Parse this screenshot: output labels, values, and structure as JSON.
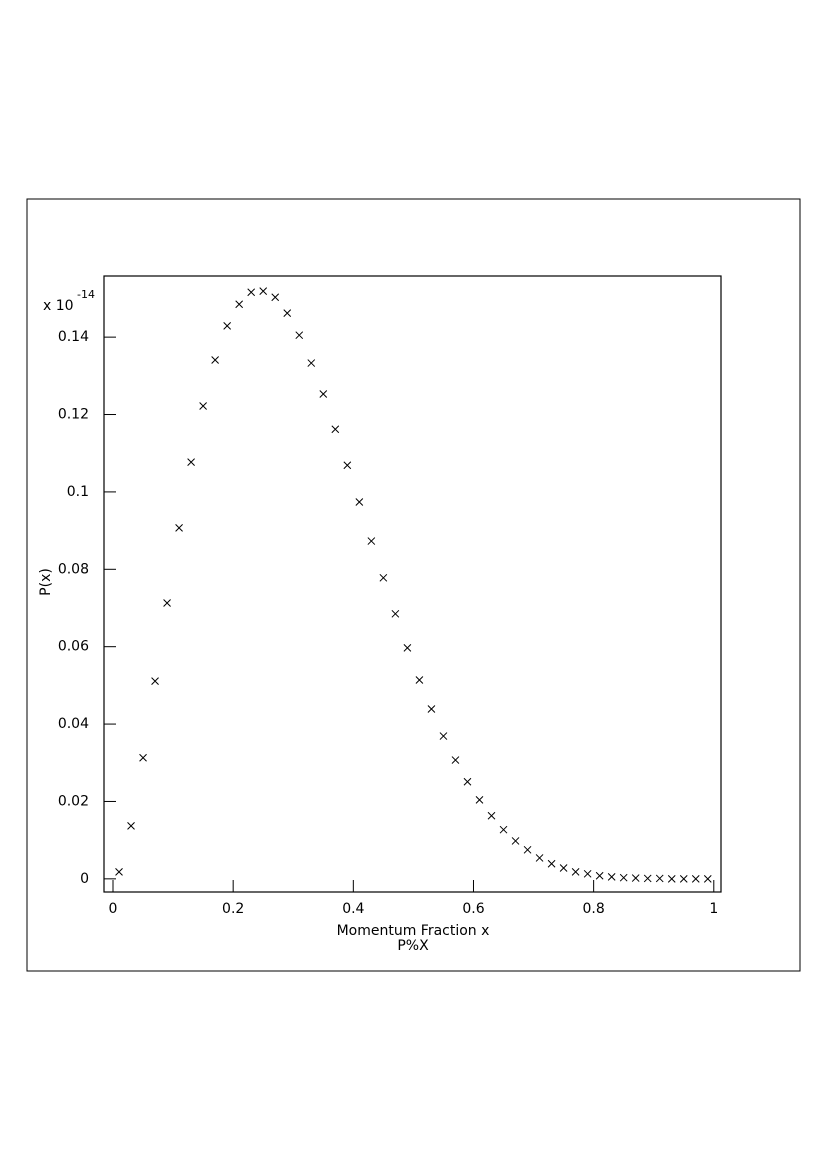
{
  "chart_data": {
    "type": "scatter",
    "x_label": "Momentum Fraction x",
    "subtitle": "P%X",
    "y_label": "P(x)",
    "y_multiplier": "x 10",
    "y_exponent": "-14",
    "x": [
      0.01,
      0.03,
      0.05,
      0.07,
      0.09,
      0.11,
      0.13,
      0.15,
      0.17,
      0.19,
      0.21,
      0.23,
      0.25,
      0.27,
      0.29,
      0.31,
      0.33,
      0.35,
      0.37,
      0.39,
      0.41,
      0.43,
      0.45,
      0.47,
      0.49,
      0.51,
      0.53,
      0.55,
      0.57,
      0.59,
      0.61,
      0.63,
      0.65,
      0.67,
      0.69,
      0.71,
      0.73,
      0.75,
      0.77,
      0.79,
      0.81,
      0.83,
      0.85,
      0.87,
      0.89,
      0.91,
      0.93,
      0.95,
      0.97,
      0.99
    ],
    "values": [
      0.0018,
      0.0137,
      0.0313,
      0.0511,
      0.0713,
      0.0907,
      0.1077,
      0.1222,
      0.1341,
      0.1429,
      0.1485,
      0.1516,
      0.1519,
      0.1503,
      0.1462,
      0.1405,
      0.1333,
      0.1253,
      0.1162,
      0.1069,
      0.0974,
      0.0873,
      0.0778,
      0.0685,
      0.0597,
      0.0514,
      0.0439,
      0.0369,
      0.0307,
      0.0251,
      0.0204,
      0.0163,
      0.0127,
      0.0098,
      0.0075,
      0.0054,
      0.0039,
      0.0028,
      0.0018,
      0.0013,
      0.0008,
      0.0005,
      0.0003,
      0.0002,
      0.0001,
      0.0001,
      0,
      0,
      0,
      0
    ],
    "color": "#000000",
    "xlim": [
      -0.015,
      1.012
    ],
    "ylim": [
      -0.0034,
      0.1558
    ],
    "xticks": [
      0,
      0.2,
      0.4,
      0.6,
      0.8,
      1
    ],
    "yticks": [
      0,
      0.02,
      0.04,
      0.06,
      0.08,
      0.1,
      0.12,
      0.14
    ],
    "grid": false
  }
}
